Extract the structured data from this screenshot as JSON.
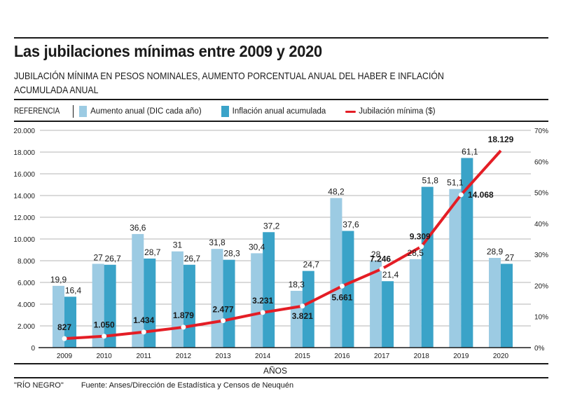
{
  "header": {
    "title": "Las jubilaciones mínimas entre 2009 y 2020",
    "subtitle": "JUBILACIÓN MÍNIMA EN PESOS NOMINALES, AUMENTO PORCENTUAL ANUAL DEL HABER E INFLACIÓN ACUMULADA ANUAL"
  },
  "legend": {
    "reference_label": "REFERENCIA",
    "items": [
      {
        "label": "Aumento anual (DIC cada año)",
        "color": "#9ccbe3",
        "kind": "bar"
      },
      {
        "label": "Inflación anual acumulada",
        "color": "#3aa3c8",
        "kind": "bar"
      },
      {
        "label": "Jubilación mínima ($)",
        "color": "#e41d25",
        "kind": "line"
      }
    ]
  },
  "footer": {
    "credit": "\"RÍO NEGRO\"",
    "source": "Fuente: Anses/Dirección de Estadística y Censos de Neuquén"
  },
  "chart_data": {
    "type": "bar",
    "title": "Las jubilaciones mínimas entre 2009 y 2020",
    "xlabel": "AÑOS",
    "categories": [
      "2009",
      "2010",
      "2011",
      "2012",
      "2013",
      "2014",
      "2015",
      "2016",
      "2017",
      "2018",
      "2019",
      "2020"
    ],
    "series": [
      {
        "name": "Aumento anual (DIC cada año)",
        "axis": "right",
        "type": "bar",
        "color": "#9ccbe3",
        "values": [
          19.9,
          27,
          36.6,
          31,
          31.8,
          30.4,
          18.3,
          48.2,
          28,
          28.5,
          51.1,
          28.9
        ],
        "labels": [
          "19,9",
          "27",
          "36,6",
          "31",
          "31,8",
          "30,4",
          "18,3",
          "48,2",
          "28",
          "28,5",
          "51,1",
          "28,9"
        ]
      },
      {
        "name": "Inflación anual acumulada",
        "axis": "right",
        "type": "bar",
        "color": "#3aa3c8",
        "values": [
          16.4,
          26.7,
          28.7,
          26.7,
          28.3,
          37.2,
          24.7,
          37.6,
          21.4,
          51.8,
          61.1,
          27
        ],
        "labels": [
          "16,4",
          "26,7",
          "28,7",
          "26,7",
          "28,3",
          "37,2",
          "24,7",
          "37,6",
          "21,4",
          "51,8",
          "61,1",
          "27"
        ]
      },
      {
        "name": "Jubilación mínima ($)",
        "axis": "left",
        "type": "line",
        "color": "#e41d25",
        "values": [
          827,
          1050,
          1434,
          1879,
          2477,
          3231,
          3821,
          5661,
          7246,
          9309,
          14068,
          18129
        ],
        "labels": [
          "827",
          "1.050",
          "1.434",
          "1.879",
          "2.477",
          "3.231",
          "3.821",
          "5.661",
          "7.246",
          "9.309",
          "14.068",
          "18.129"
        ]
      }
    ],
    "left_axis": {
      "ylim": [
        0,
        20000
      ],
      "ticks": [
        "0",
        "2.000",
        "4.000",
        "6.000",
        "8.000",
        "10.000",
        "12.000",
        "14.000",
        "16.000",
        "18.000",
        "20.000"
      ]
    },
    "right_axis": {
      "ylim": [
        0,
        70
      ],
      "ticks": [
        "0%",
        "10%",
        "20%",
        "30%",
        "40%",
        "50%",
        "60%",
        "70%"
      ]
    },
    "grid": true
  }
}
